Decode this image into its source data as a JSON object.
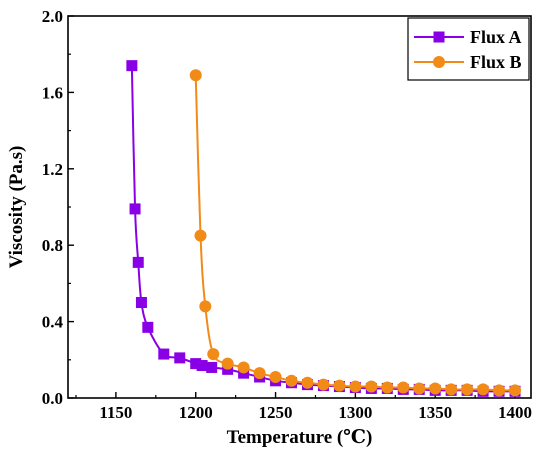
{
  "chart_data": {
    "type": "line",
    "title": "",
    "xlabel": "Temperature (℃)",
    "ylabel": "Viscosity (Pa.s)",
    "xlim": [
      1120,
      1410
    ],
    "ylim": [
      0,
      2.0
    ],
    "xticks": [
      1150,
      1200,
      1250,
      1300,
      1350,
      1400
    ],
    "xtick_labels": [
      "1150",
      "1200",
      "1250",
      "1300",
      "1350",
      "1400"
    ],
    "yticks": [
      0.0,
      0.4,
      0.8,
      1.2,
      1.6,
      2.0
    ],
    "ytick_labels": [
      "0.0",
      "0.4",
      "0.8",
      "1.2",
      "1.6",
      "2.0"
    ],
    "grid": false,
    "legend_position": "top-right",
    "series": [
      {
        "name": "Flux A",
        "color": "#8a00e6",
        "marker": "square",
        "x": [
          1160,
          1162,
          1164,
          1166,
          1170,
          1180,
          1190,
          1200,
          1204,
          1210,
          1220,
          1230,
          1240,
          1250,
          1260,
          1270,
          1280,
          1290,
          1300,
          1310,
          1320,
          1330,
          1340,
          1350,
          1360,
          1370,
          1380,
          1390,
          1400
        ],
        "y": [
          1.74,
          0.99,
          0.71,
          0.5,
          0.37,
          0.23,
          0.21,
          0.18,
          0.17,
          0.16,
          0.15,
          0.13,
          0.11,
          0.09,
          0.08,
          0.07,
          0.065,
          0.06,
          0.055,
          0.05,
          0.05,
          0.045,
          0.045,
          0.04,
          0.04,
          0.04,
          0.035,
          0.035,
          0.035
        ]
      },
      {
        "name": "Flux B",
        "color": "#f28a18",
        "marker": "circle",
        "x": [
          1200,
          1203,
          1206,
          1211,
          1220,
          1230,
          1240,
          1250,
          1260,
          1270,
          1280,
          1290,
          1300,
          1310,
          1320,
          1330,
          1340,
          1350,
          1360,
          1370,
          1380,
          1390,
          1400
        ],
        "y": [
          1.69,
          0.85,
          0.48,
          0.23,
          0.18,
          0.16,
          0.13,
          0.11,
          0.09,
          0.08,
          0.07,
          0.065,
          0.06,
          0.06,
          0.055,
          0.055,
          0.05,
          0.05,
          0.045,
          0.045,
          0.045,
          0.04,
          0.04
        ]
      }
    ]
  }
}
